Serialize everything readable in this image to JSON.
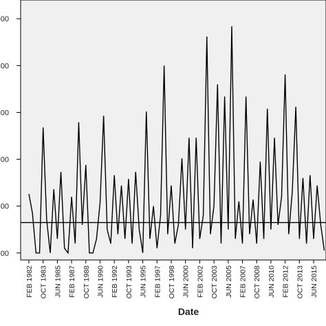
{
  "chart_data": {
    "type": "line",
    "x_label": "Date",
    "categories": [
      "FEB 1982",
      null,
      null,
      null,
      "OCT 1983",
      null,
      null,
      null,
      "JUN 1985",
      null,
      null,
      null,
      "FEB 1987",
      null,
      null,
      null,
      "OCT 1988",
      null,
      null,
      null,
      "JUN 1990",
      null,
      null,
      null,
      "FEB 1992",
      null,
      null,
      null,
      "OCT 1993",
      null,
      null,
      null,
      "JUN 1995",
      null,
      null,
      null,
      "FEB 1997",
      null,
      null,
      null,
      "OCT 1998",
      null,
      null,
      null,
      "JUN 2000",
      null,
      null,
      null,
      "FEB 2002",
      null,
      null,
      null,
      "OCT 2003",
      null,
      null,
      null,
      "JUN 2005",
      null,
      null,
      null,
      "FEB 2007",
      null,
      null,
      null,
      "OCT 2008",
      null,
      null,
      null,
      "JUN 2010",
      null,
      null,
      null,
      "FEB 2012",
      null,
      null,
      null,
      "OCT 2013",
      null,
      null,
      null,
      "JUN 2015",
      null,
      null,
      null
    ],
    "values": [
      1.26,
      0.85,
      0,
      0,
      2.68,
      0.7,
      0,
      1.36,
      0.3,
      1.73,
      0.1,
      0,
      1.2,
      0.2,
      2.79,
      0.6,
      1.88,
      0,
      0,
      0.3,
      1.07,
      2.93,
      0.5,
      0.2,
      1.66,
      0.4,
      1.44,
      0.3,
      1.58,
      0.2,
      1.73,
      0.5,
      0,
      3.02,
      0.3,
      1.0,
      0.1,
      0.8,
      4.0,
      0.4,
      1.44,
      0.2,
      0.6,
      2.02,
      0.5,
      2.46,
      0.1,
      2.46,
      0.3,
      0.8,
      4.62,
      0.4,
      1.0,
      3.6,
      0.2,
      3.34,
      0.5,
      4.84,
      0.3,
      1.1,
      0.2,
      3.34,
      0.4,
      1.14,
      0.2,
      1.95,
      0.3,
      3.08,
      0.5,
      2.46,
      0.6,
      1.2,
      3.81,
      0.4,
      1.3,
      3.12,
      0.3,
      1.6,
      0.2,
      1.66,
      0.3,
      1.44,
      0.6,
      0.05
    ],
    "color": "#000000",
    "reference_line": 0.65,
    "ylim": [
      -0.15,
      5.4
    ],
    "yticks": [
      {
        "value": 0,
        "label": "00"
      },
      {
        "value": 1,
        "label": "00"
      },
      {
        "value": 2,
        "label": "00"
      },
      {
        "value": 3,
        "label": "00"
      },
      {
        "value": 4,
        "label": "00"
      },
      {
        "value": 5,
        "label": "00"
      }
    ],
    "background": "#f0f0f0"
  }
}
